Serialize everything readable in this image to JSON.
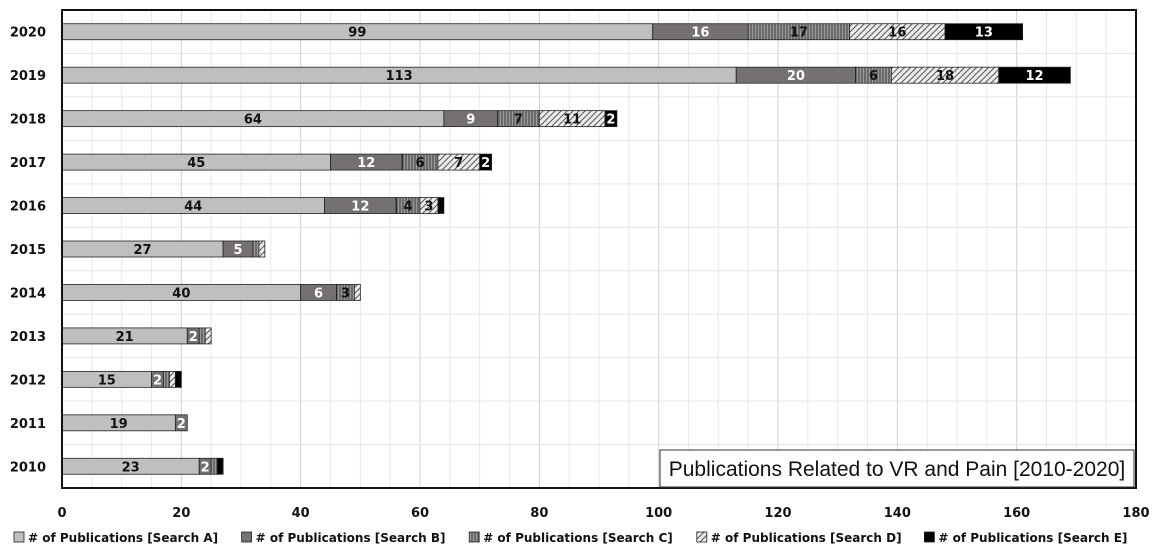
{
  "chart_data": {
    "type": "bar",
    "orientation": "horizontal",
    "stacked": true,
    "title": "Publications Related to VR and Pain [2010-2020]",
    "categories": [
      "2020",
      "2019",
      "2018",
      "2017",
      "2016",
      "2015",
      "2014",
      "2013",
      "2012",
      "2011",
      "2010"
    ],
    "series": [
      {
        "name": "# of Publications [Search A]",
        "values": [
          99,
          113,
          64,
          45,
          44,
          27,
          40,
          21,
          15,
          19,
          23
        ],
        "color": "#bfbfbf",
        "pattern": "solid-light",
        "labels": [
          "99",
          "113",
          "64",
          "45",
          "44",
          "27",
          "40",
          "21",
          "15",
          "19",
          "23"
        ]
      },
      {
        "name": "# of Publications [Search B]",
        "values": [
          16,
          20,
          9,
          12,
          12,
          5,
          6,
          2,
          2,
          2,
          2
        ],
        "color": "#767171",
        "pattern": "solid-dark",
        "labels": [
          "16",
          "20",
          "9",
          "12",
          "12",
          "5",
          "6",
          "2",
          "2",
          "2",
          "2"
        ]
      },
      {
        "name": "# of Publications [Search C]",
        "values": [
          17,
          6,
          7,
          6,
          4,
          1,
          3,
          1,
          1,
          0,
          1
        ],
        "color": "#8c8c8c",
        "pattern": "vertical-stripes",
        "labels": [
          "17",
          "6",
          "7",
          "6",
          "4",
          "",
          "3",
          "",
          "",
          "",
          ""
        ]
      },
      {
        "name": "# of Publications [Search D]",
        "values": [
          16,
          18,
          11,
          7,
          3,
          1,
          1,
          1,
          1,
          0,
          0
        ],
        "color": "#e8e8e8",
        "pattern": "diagonal-hatch",
        "labels": [
          "16",
          "18",
          "11",
          "7",
          "3",
          "",
          "",
          "",
          "",
          "",
          ""
        ]
      },
      {
        "name": "# of Publications [Search E]",
        "values": [
          13,
          12,
          2,
          2,
          1,
          0,
          0,
          0,
          1,
          0,
          1
        ],
        "color": "#000000",
        "pattern": "solid-black",
        "labels": [
          "13",
          "12",
          "2",
          "2",
          "",
          "",
          "",
          "",
          "",
          "",
          ""
        ]
      }
    ],
    "xlim": [
      0,
      180
    ],
    "xticks": [
      "0",
      "20",
      "40",
      "60",
      "80",
      "100",
      "120",
      "140",
      "160",
      "180"
    ],
    "grid": true,
    "legend_position": "bottom"
  }
}
